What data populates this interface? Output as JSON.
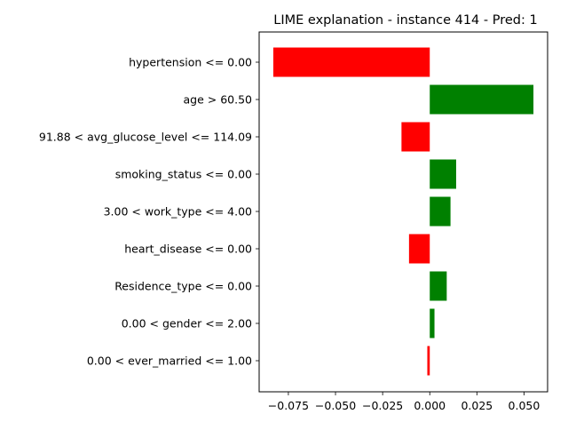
{
  "chart_data": {
    "type": "bar",
    "orientation": "horizontal",
    "title": "LIME explanation - instance 414 - Pred: 1",
    "xlabel": "",
    "ylabel": "",
    "categories": [
      "hypertension <= 0.00",
      "age > 60.50",
      "91.88 < avg_glucose_level <= 114.09",
      "smoking_status <= 0.00",
      "3.00 < work_type <= 4.00",
      "heart_disease <= 0.00",
      "Residence_type <= 0.00",
      "0.00 < gender <= 2.00",
      "0.00 < ever_married <= 1.00"
    ],
    "values": [
      -0.083,
      0.055,
      -0.015,
      0.014,
      0.011,
      -0.011,
      0.009,
      0.0025,
      -0.0013
    ],
    "xlim": [
      -0.0905,
      0.0625
    ],
    "xticks": [
      -0.075,
      -0.05,
      -0.025,
      0.0,
      0.025,
      0.05
    ],
    "xtick_labels": [
      "−0.075",
      "−0.050",
      "−0.025",
      "0.000",
      "0.025",
      "0.050"
    ],
    "grid": false,
    "colors": {
      "positive": "#008000",
      "negative": "#ff0000"
    }
  }
}
